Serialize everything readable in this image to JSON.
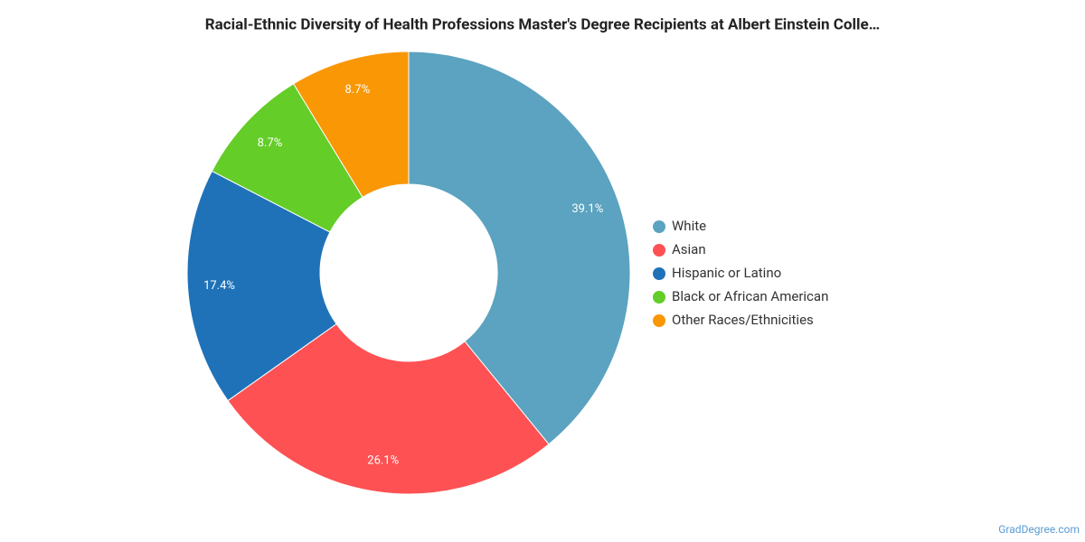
{
  "chart_data": {
    "type": "donut",
    "title": "Racial-Ethnic Diversity of Health Professions Master's Degree Recipients at Albert Einstein Colle…",
    "categories": [
      "White",
      "Asian",
      "Hispanic or Latino",
      "Black or African American",
      "Other Races/Ethnicities"
    ],
    "values": [
      39.1,
      26.1,
      17.4,
      8.7,
      8.7
    ],
    "value_labels": [
      "39.1%",
      "26.1%",
      "17.4%",
      "8.7%",
      "8.7%"
    ],
    "colors": [
      "#5ba3c0",
      "#fe5153",
      "#1f72b8",
      "#64cd28",
      "#f99704"
    ],
    "legend": "right",
    "credit": "GradDegree.com"
  }
}
